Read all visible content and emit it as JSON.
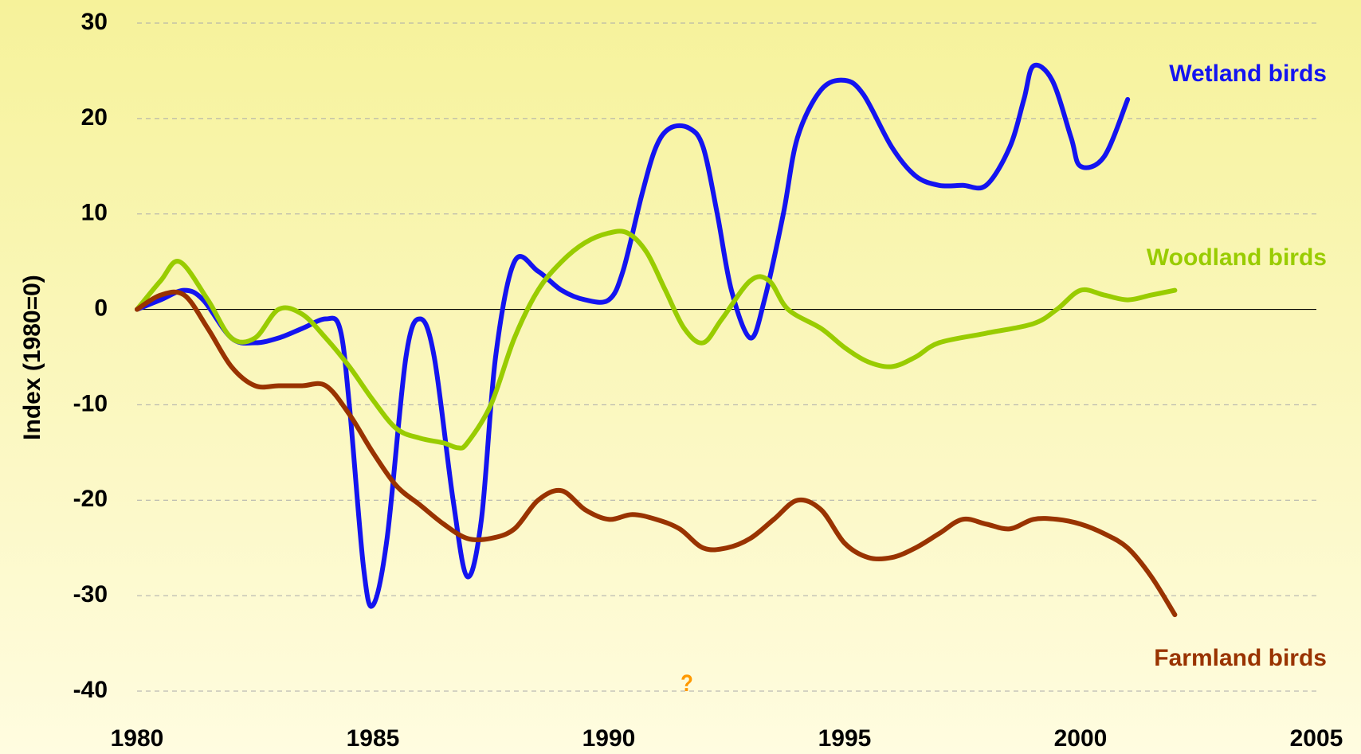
{
  "chart_data": {
    "type": "line",
    "y_label": "Index (1980=0)",
    "annotation": "?",
    "annotation_color": "#ff9900",
    "xlim": [
      1980,
      2005
    ],
    "xticks": [
      1980,
      1985,
      1990,
      1995,
      2000,
      2005
    ],
    "ylim": [
      -40,
      30
    ],
    "yticks": [
      -40,
      -30,
      -20,
      -10,
      0,
      10,
      20,
      30
    ],
    "grid": true,
    "series": [
      {
        "name": "Wetland birds",
        "color": "#1414f0",
        "x": [
          1980,
          1980.5,
          1981,
          1981.4,
          1982,
          1982.5,
          1983,
          1983.5,
          1984,
          1984.3,
          1984.5,
          1984.8,
          1985,
          1985.3,
          1985.7,
          1986,
          1986.3,
          1986.7,
          1987,
          1987.3,
          1987.6,
          1988,
          1988.5,
          1989,
          1989.5,
          1990,
          1990.3,
          1990.7,
          1991,
          1991.3,
          1991.7,
          1992,
          1992.3,
          1992.6,
          1993,
          1993.3,
          1993.7,
          1994,
          1994.5,
          1995,
          1995.4,
          1996,
          1996.5,
          1997,
          1997.5,
          1998,
          1998.5,
          1998.8,
          1999,
          1999.4,
          1999.8,
          2000,
          2000.5,
          2001
        ],
        "values": [
          0,
          1,
          2,
          1,
          -3,
          -3.5,
          -3,
          -2,
          -1,
          -2,
          -10,
          -27,
          -31,
          -24,
          -5,
          -1,
          -5,
          -20,
          -28,
          -22,
          -5,
          5,
          4,
          2,
          1,
          1,
          4,
          12,
          17,
          19,
          19,
          17,
          10,
          2,
          -3,
          1,
          10,
          18,
          23,
          24,
          22.5,
          17,
          14,
          13,
          13,
          13,
          17,
          22,
          25.5,
          24,
          18,
          15,
          16,
          22
        ]
      },
      {
        "name": "Woodland birds",
        "color": "#99cc00",
        "x": [
          1980,
          1980.5,
          1980.9,
          1981.5,
          1982,
          1982.5,
          1983,
          1983.5,
          1984,
          1984.5,
          1985,
          1985.5,
          1986,
          1986.5,
          1986.8,
          1987,
          1987.5,
          1988,
          1988.5,
          1989,
          1989.5,
          1990,
          1990.4,
          1990.8,
          1991.2,
          1991.6,
          1992,
          1992.4,
          1993,
          1993.4,
          1993.8,
          1994.5,
          1995,
          1995.5,
          1996,
          1996.5,
          1997,
          1998,
          1999,
          1999.5,
          2000,
          2000.5,
          2001,
          2001.5,
          2002
        ],
        "values": [
          0,
          3,
          5,
          1,
          -3,
          -3,
          0,
          -0.5,
          -3,
          -6,
          -9.5,
          -12.5,
          -13.5,
          -14,
          -14.5,
          -14,
          -10,
          -3,
          2,
          5,
          7,
          8,
          8,
          6,
          2,
          -2,
          -3.5,
          -1,
          3,
          3,
          0,
          -2,
          -4,
          -5.5,
          -6,
          -5,
          -3.5,
          -2.5,
          -1.5,
          0,
          2,
          1.5,
          1,
          1.5,
          2
        ]
      },
      {
        "name": "Farmland birds",
        "color": "#993300",
        "x": [
          1980,
          1980.5,
          1981,
          1981.5,
          1982,
          1982.5,
          1983,
          1983.5,
          1984,
          1984.5,
          1985,
          1985.5,
          1986,
          1986.5,
          1987,
          1987.5,
          1988,
          1988.5,
          1989,
          1989.5,
          1990,
          1990.5,
          1991,
          1991.5,
          1992,
          1992.5,
          1993,
          1993.5,
          1994,
          1994.5,
          1995,
          1995.5,
          1996,
          1996.5,
          1997,
          1997.5,
          1998,
          1998.5,
          1999,
          1999.5,
          2000,
          2000.5,
          2001,
          2001.5,
          2002
        ],
        "values": [
          0,
          1.5,
          1.5,
          -2,
          -6,
          -8,
          -8,
          -8,
          -8,
          -11,
          -15,
          -18.5,
          -20.5,
          -22.5,
          -24,
          -24,
          -23,
          -20,
          -19,
          -21,
          -22,
          -21.5,
          -22,
          -23,
          -25,
          -25,
          -24,
          -22,
          -20,
          -21,
          -24.5,
          -26,
          -26,
          -25,
          -23.5,
          -22,
          -22.5,
          -23,
          -22,
          -22,
          -22.5,
          -23.5,
          -25,
          -28,
          -32
        ]
      }
    ]
  }
}
